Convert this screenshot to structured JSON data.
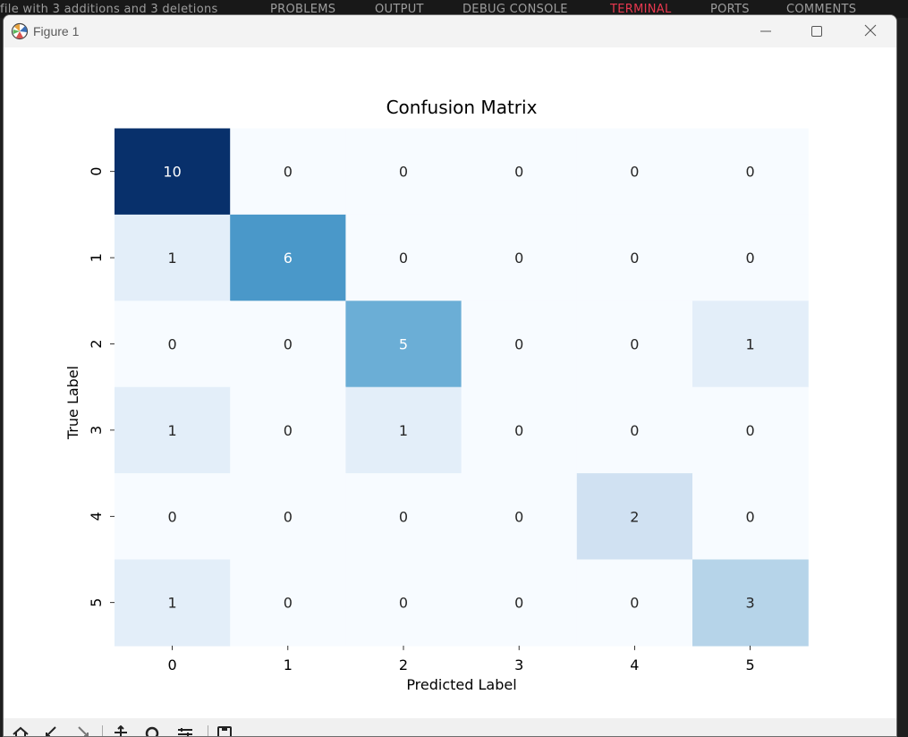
{
  "background": {
    "tabs": [
      "PROBLEMS",
      "OUTPUT",
      "DEBUG CONSOLE",
      "TERMINAL",
      "PORTS",
      "COMMENTS"
    ],
    "active_tab": "TERMINAL",
    "left_text": "file with 3 additions and 3 deletions"
  },
  "window": {
    "title": "Figure 1",
    "controls": {
      "minimize_icon": "minimize-icon",
      "maximize_icon": "maximize-icon",
      "close_icon": "close-icon"
    }
  },
  "toolbar": {
    "icons": [
      "home-icon",
      "back-icon",
      "forward-icon",
      "pan-icon",
      "zoom-icon",
      "configure-subplots-icon",
      "save-icon"
    ]
  },
  "colors": {
    "cmap_low": "#f7fbff",
    "cmap_high": "#08306b",
    "dark_text": "#262626",
    "light_text": "#ffffff"
  },
  "chart_data": {
    "type": "heatmap",
    "title": "Confusion Matrix",
    "xlabel": "Predicted Label",
    "ylabel": "True Label",
    "x_labels": [
      "0",
      "1",
      "2",
      "3",
      "4",
      "5"
    ],
    "y_labels": [
      "0",
      "1",
      "2",
      "3",
      "4",
      "5"
    ],
    "matrix": [
      [
        10,
        0,
        0,
        0,
        0,
        0
      ],
      [
        1,
        6,
        0,
        0,
        0,
        0
      ],
      [
        0,
        0,
        5,
        0,
        0,
        1
      ],
      [
        1,
        0,
        1,
        0,
        0,
        0
      ],
      [
        0,
        0,
        0,
        0,
        2,
        0
      ],
      [
        1,
        0,
        0,
        0,
        0,
        3
      ]
    ],
    "colormap": "Blues",
    "vmin": 0,
    "vmax": 10,
    "annotations": true,
    "colorbar": false
  }
}
